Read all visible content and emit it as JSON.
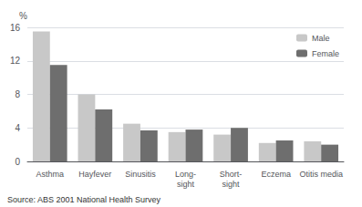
{
  "chart_data": {
    "type": "bar",
    "categories": [
      "Asthma",
      "Hayfever",
      "Sinusitis",
      "Long-\nsight",
      "Short-\nsight",
      "Eczema",
      "Otitis media"
    ],
    "series": [
      {
        "name": "Male",
        "color": "#c8c8c8",
        "values": [
          15.5,
          8.0,
          4.5,
          3.5,
          3.2,
          2.2,
          2.4
        ]
      },
      {
        "name": "Female",
        "color": "#6e6e6e",
        "values": [
          11.5,
          6.2,
          3.7,
          3.8,
          4.0,
          2.5,
          2.0
        ]
      }
    ],
    "ylabel": "%",
    "ylim": [
      0,
      16
    ],
    "yticks": [
      0,
      4,
      8,
      12,
      16
    ],
    "grid": true,
    "legend": "upper right",
    "annotations": [
      "Source: ABS 2001 National Health Survey"
    ]
  }
}
